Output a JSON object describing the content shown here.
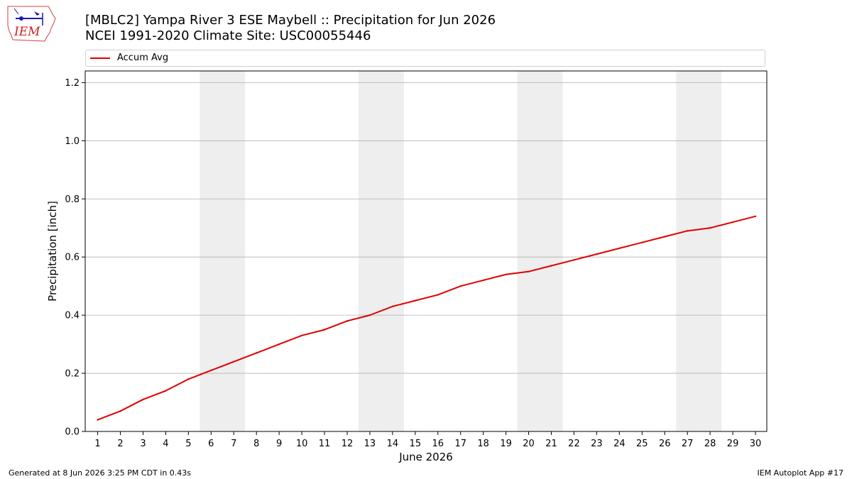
{
  "header": {
    "title_line1": "[MBLC2] Yampa River 3 ESE Maybell :: Precipitation for Jun 2026",
    "title_line2": "NCEI 1991-2020 Climate Site: USC00055446",
    "logo_text": "IEM"
  },
  "footer": {
    "left": "Generated at 8 Jun 2026 3:25 PM CDT in 0.43s",
    "right": "IEM Autoplot App #17"
  },
  "colors": {
    "series": "#e00000",
    "weekend_band": "#eeeeee",
    "grid": "#b0b0b0"
  },
  "chart_data": {
    "type": "line",
    "xlabel": "June 2026",
    "ylabel": "Precipitation [inch]",
    "xlim": [
      0.45,
      30.5
    ],
    "ylim": [
      0,
      1.24
    ],
    "yticks": [
      0.0,
      0.2,
      0.4,
      0.6,
      0.8,
      1.0,
      1.2
    ],
    "ytick_labels": [
      "0.0",
      "0.2",
      "0.4",
      "0.6",
      "0.8",
      "1.0",
      "1.2"
    ],
    "x": [
      1,
      2,
      3,
      4,
      5,
      6,
      7,
      8,
      9,
      10,
      11,
      12,
      13,
      14,
      15,
      16,
      17,
      18,
      19,
      20,
      21,
      22,
      23,
      24,
      25,
      26,
      27,
      28,
      29,
      30
    ],
    "x_tick_labels": [
      "1",
      "2",
      "3",
      "4",
      "5",
      "6",
      "7",
      "8",
      "9",
      "10",
      "11",
      "12",
      "13",
      "14",
      "15",
      "16",
      "17",
      "18",
      "19",
      "20",
      "21",
      "22",
      "23",
      "24",
      "25",
      "26",
      "27",
      "28",
      "29",
      "30"
    ],
    "grid": "horizontal",
    "legend_position": "top",
    "weekend_bands": [
      [
        5.5,
        7.5
      ],
      [
        12.5,
        14.5
      ],
      [
        19.5,
        21.5
      ],
      [
        26.5,
        28.5
      ]
    ],
    "series": [
      {
        "name": "Accum Avg",
        "color": "#e00000",
        "values": [
          0.04,
          0.07,
          0.11,
          0.14,
          0.18,
          0.21,
          0.24,
          0.27,
          0.3,
          0.33,
          0.35,
          0.38,
          0.4,
          0.43,
          0.45,
          0.47,
          0.5,
          0.52,
          0.54,
          0.55,
          0.57,
          0.59,
          0.61,
          0.63,
          0.65,
          0.67,
          0.69,
          0.7,
          0.72,
          0.74
        ]
      }
    ]
  }
}
